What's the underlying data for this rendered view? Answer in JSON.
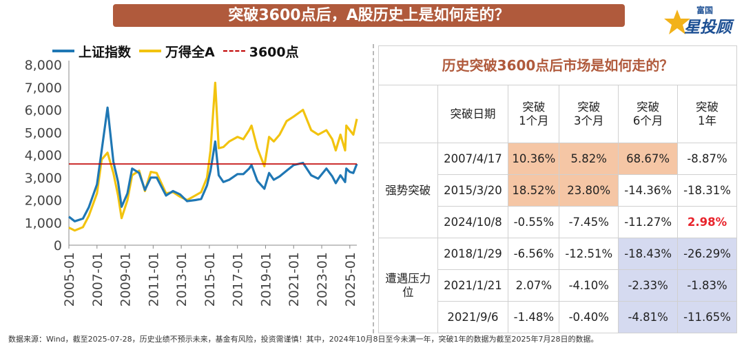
{
  "banner": {
    "title": "突破3600点后，A股历史上是如何走的？"
  },
  "logo": {
    "top": "富国",
    "main": "星投顾",
    "icon": "star-icon"
  },
  "legend": [
    {
      "label": "上证指数",
      "color": "#1f77b4"
    },
    {
      "label": "万得全A",
      "color": "#f2c30f"
    },
    {
      "label": "3600点",
      "color": "#c00000"
    }
  ],
  "chart_data": {
    "type": "line",
    "title": "",
    "xlabel": "",
    "ylabel": "",
    "ylim": [
      0,
      8000
    ],
    "yticks": [
      0,
      1000,
      2000,
      3000,
      4000,
      5000,
      6000,
      7000,
      8000
    ],
    "ytick_labels": [
      "0",
      "1,000",
      "2,000",
      "3,000",
      "4,000",
      "5,000",
      "6,000",
      "7,000",
      "8,000"
    ],
    "xlim": [
      "2005-01",
      "2025-07"
    ],
    "xtick_labels": [
      "2005-01",
      "2007-01",
      "2009-01",
      "2011-01",
      "2013-01",
      "2015-01",
      "2017-01",
      "2019-01",
      "2021-01",
      "2023-01",
      "2025-01"
    ],
    "hline": {
      "name": "3600点",
      "y": 3600,
      "style": "dashed",
      "color": "#c00000"
    },
    "series": [
      {
        "name": "上证指数",
        "color": "#1f77b4",
        "x": [
          "2005-01",
          "2005-06",
          "2006-01",
          "2006-06",
          "2007-01",
          "2007-05",
          "2007-10",
          "2008-03",
          "2008-07",
          "2008-10",
          "2009-03",
          "2009-07",
          "2010-01",
          "2010-06",
          "2010-11",
          "2011-04",
          "2011-12",
          "2012-06",
          "2012-12",
          "2013-06",
          "2014-01",
          "2014-06",
          "2014-11",
          "2015-02",
          "2015-06",
          "2015-09",
          "2016-01",
          "2016-06",
          "2017-01",
          "2017-06",
          "2017-11",
          "2018-01",
          "2018-06",
          "2018-12",
          "2019-04",
          "2019-08",
          "2020-01",
          "2020-07",
          "2021-01",
          "2021-09",
          "2022-04",
          "2022-10",
          "2023-05",
          "2023-10",
          "2024-01",
          "2024-05",
          "2024-09",
          "2024-10",
          "2025-01",
          "2025-04",
          "2025-07"
        ],
        "y": [
          1260,
          1060,
          1180,
          1680,
          2700,
          4200,
          6100,
          3700,
          2800,
          1700,
          2300,
          3400,
          3200,
          2450,
          3000,
          3000,
          2200,
          2400,
          2250,
          1950,
          2000,
          2050,
          2650,
          3300,
          4600,
          3100,
          2800,
          2900,
          3150,
          3150,
          3400,
          3550,
          2850,
          2500,
          3200,
          2900,
          3050,
          3300,
          3550,
          3650,
          3100,
          2950,
          3400,
          3050,
          2750,
          3100,
          2800,
          3400,
          3250,
          3200,
          3600
        ]
      },
      {
        "name": "万得全A",
        "color": "#f2c30f",
        "x": [
          "2005-01",
          "2005-06",
          "2006-01",
          "2006-06",
          "2007-01",
          "2007-05",
          "2007-10",
          "2008-03",
          "2008-07",
          "2008-10",
          "2009-03",
          "2009-07",
          "2010-01",
          "2010-06",
          "2010-11",
          "2011-04",
          "2011-12",
          "2012-06",
          "2012-12",
          "2013-06",
          "2014-01",
          "2014-06",
          "2014-11",
          "2015-02",
          "2015-06",
          "2015-09",
          "2016-01",
          "2016-06",
          "2017-01",
          "2017-06",
          "2017-11",
          "2018-01",
          "2018-06",
          "2018-12",
          "2019-04",
          "2019-08",
          "2020-01",
          "2020-07",
          "2021-01",
          "2021-09",
          "2022-04",
          "2022-10",
          "2023-05",
          "2023-10",
          "2024-01",
          "2024-05",
          "2024-09",
          "2024-10",
          "2025-01",
          "2025-04",
          "2025-07"
        ],
        "y": [
          780,
          650,
          800,
          1300,
          2300,
          3800,
          4100,
          3200,
          2200,
          1200,
          2000,
          3100,
          3300,
          2400,
          3250,
          3200,
          2300,
          2350,
          2150,
          2000,
          2200,
          2350,
          3000,
          4200,
          7200,
          4300,
          4350,
          4600,
          4800,
          4700,
          5100,
          5300,
          4300,
          3500,
          4800,
          4600,
          4900,
          5500,
          5700,
          6000,
          5100,
          4900,
          5100,
          4700,
          4200,
          4900,
          4200,
          5300,
          5100,
          4900,
          5600
        ]
      }
    ]
  },
  "table": {
    "title": "历史突破3600点后市场是如何走的？",
    "headers": [
      "",
      "突破日期",
      "突破\n1个月",
      "突破\n3个月",
      "突破\n6个月",
      "突破\n1年"
    ],
    "groups": [
      {
        "name": "强势突破",
        "rows": [
          {
            "date": "2007/4/17",
            "m1": "10.36%",
            "m3": "5.82%",
            "m6": "68.67%",
            "y1": "-8.87%"
          },
          {
            "date": "2015/3/20",
            "m1": "18.52%",
            "m3": "23.80%",
            "m6": "-14.36%",
            "y1": "-18.31%"
          },
          {
            "date": "2024/10/8",
            "m1": "-0.55%",
            "m3": "-7.45%",
            "m6": "-11.27%",
            "y1": "2.98%"
          }
        ]
      },
      {
        "name": "遭遇压力\n位",
        "rows": [
          {
            "date": "2018/1/29",
            "m1": "-6.56%",
            "m3": "-12.51%",
            "m6": "-18.43%",
            "y1": "-26.29%"
          },
          {
            "date": "2021/1/21",
            "m1": "2.07%",
            "m3": "-4.10%",
            "m6": "-2.33%",
            "y1": "-1.83%"
          },
          {
            "date": "2021/9/6",
            "m1": "-1.48%",
            "m3": "-0.40%",
            "m6": "-4.81%",
            "y1": "-11.65%"
          }
        ]
      }
    ],
    "colors": {
      "highlight_orange": "#f5c6a5",
      "highlight_blue": "#d5daf0",
      "positive_red": "#e8242c",
      "title_brown": "#b05a3c"
    }
  },
  "footnote": "数据来源：Wind，截至2025-07-28，历史业绩不预示未来，基金有风险，投资需谨慎！其中，2024年10月8日至今未满一年，突破1年的数据为截至2025年7月28日的数据。"
}
